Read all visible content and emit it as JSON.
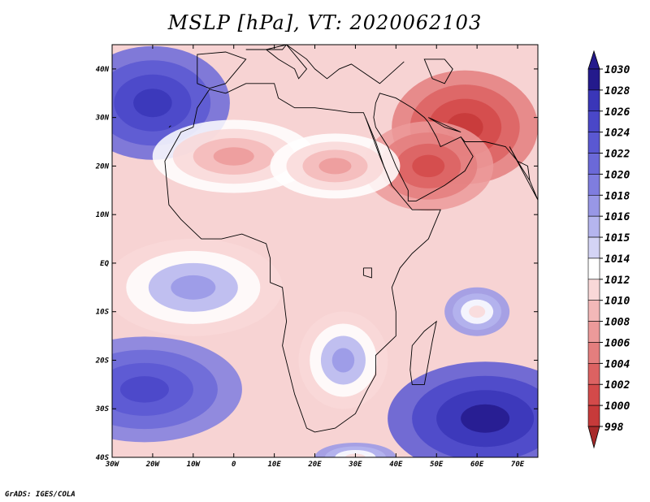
{
  "title": "MSLP [hPa], VT: 2020062103",
  "credit": "GrADS: IGES/COLA",
  "map": {
    "lon_range": [
      -30,
      75
    ],
    "lat_range": [
      -40,
      45
    ],
    "lon_ticks": [
      "30W",
      "20W",
      "10W",
      "0",
      "10E",
      "20E",
      "30E",
      "40E",
      "50E",
      "60E",
      "70E"
    ],
    "lat_ticks": [
      "40N",
      "30N",
      "20N",
      "10N",
      "EQ",
      "10S",
      "20S",
      "30S",
      "40S"
    ],
    "pressure_field_hpa": [
      {
        "lon": -20,
        "lat": 33,
        "value": 1028
      },
      {
        "lon": -22,
        "lat": -26,
        "value": 1026
      },
      {
        "lon": 62,
        "lat": -32,
        "value": 1030
      },
      {
        "lon": 57,
        "lat": 28,
        "value": 1000
      },
      {
        "lon": 48,
        "lat": 20,
        "value": 1002
      },
      {
        "lon": 0,
        "lat": 22,
        "value": 1008
      },
      {
        "lon": 25,
        "lat": 20,
        "value": 1008
      },
      {
        "lon": 27,
        "lat": -20,
        "value": 1018
      },
      {
        "lon": 30,
        "lat": -40,
        "value": 1012
      },
      {
        "lon": -10,
        "lat": -5,
        "value": 1018
      },
      {
        "lon": 60,
        "lat": -10,
        "value": 1012
      }
    ]
  },
  "colorbar": {
    "levels": [
      "1030",
      "1028",
      "1026",
      "1024",
      "1022",
      "1020",
      "1018",
      "1016",
      "1015",
      "1014",
      "1012",
      "1010",
      "1008",
      "1006",
      "1004",
      "1002",
      "1000",
      "998"
    ],
    "colors": [
      "#241a8c",
      "#3a36b8",
      "#4a47c8",
      "#5a58d2",
      "#6b69d8",
      "#7f7ddf",
      "#9897e6",
      "#b5b5ee",
      "#d4d4f5",
      "#ffffff",
      "#f9d8d8",
      "#f3b8b8",
      "#ec9a9a",
      "#e47e7e",
      "#dc6262",
      "#d34a4a",
      "#c73a3a",
      "#a82a2a"
    ]
  }
}
